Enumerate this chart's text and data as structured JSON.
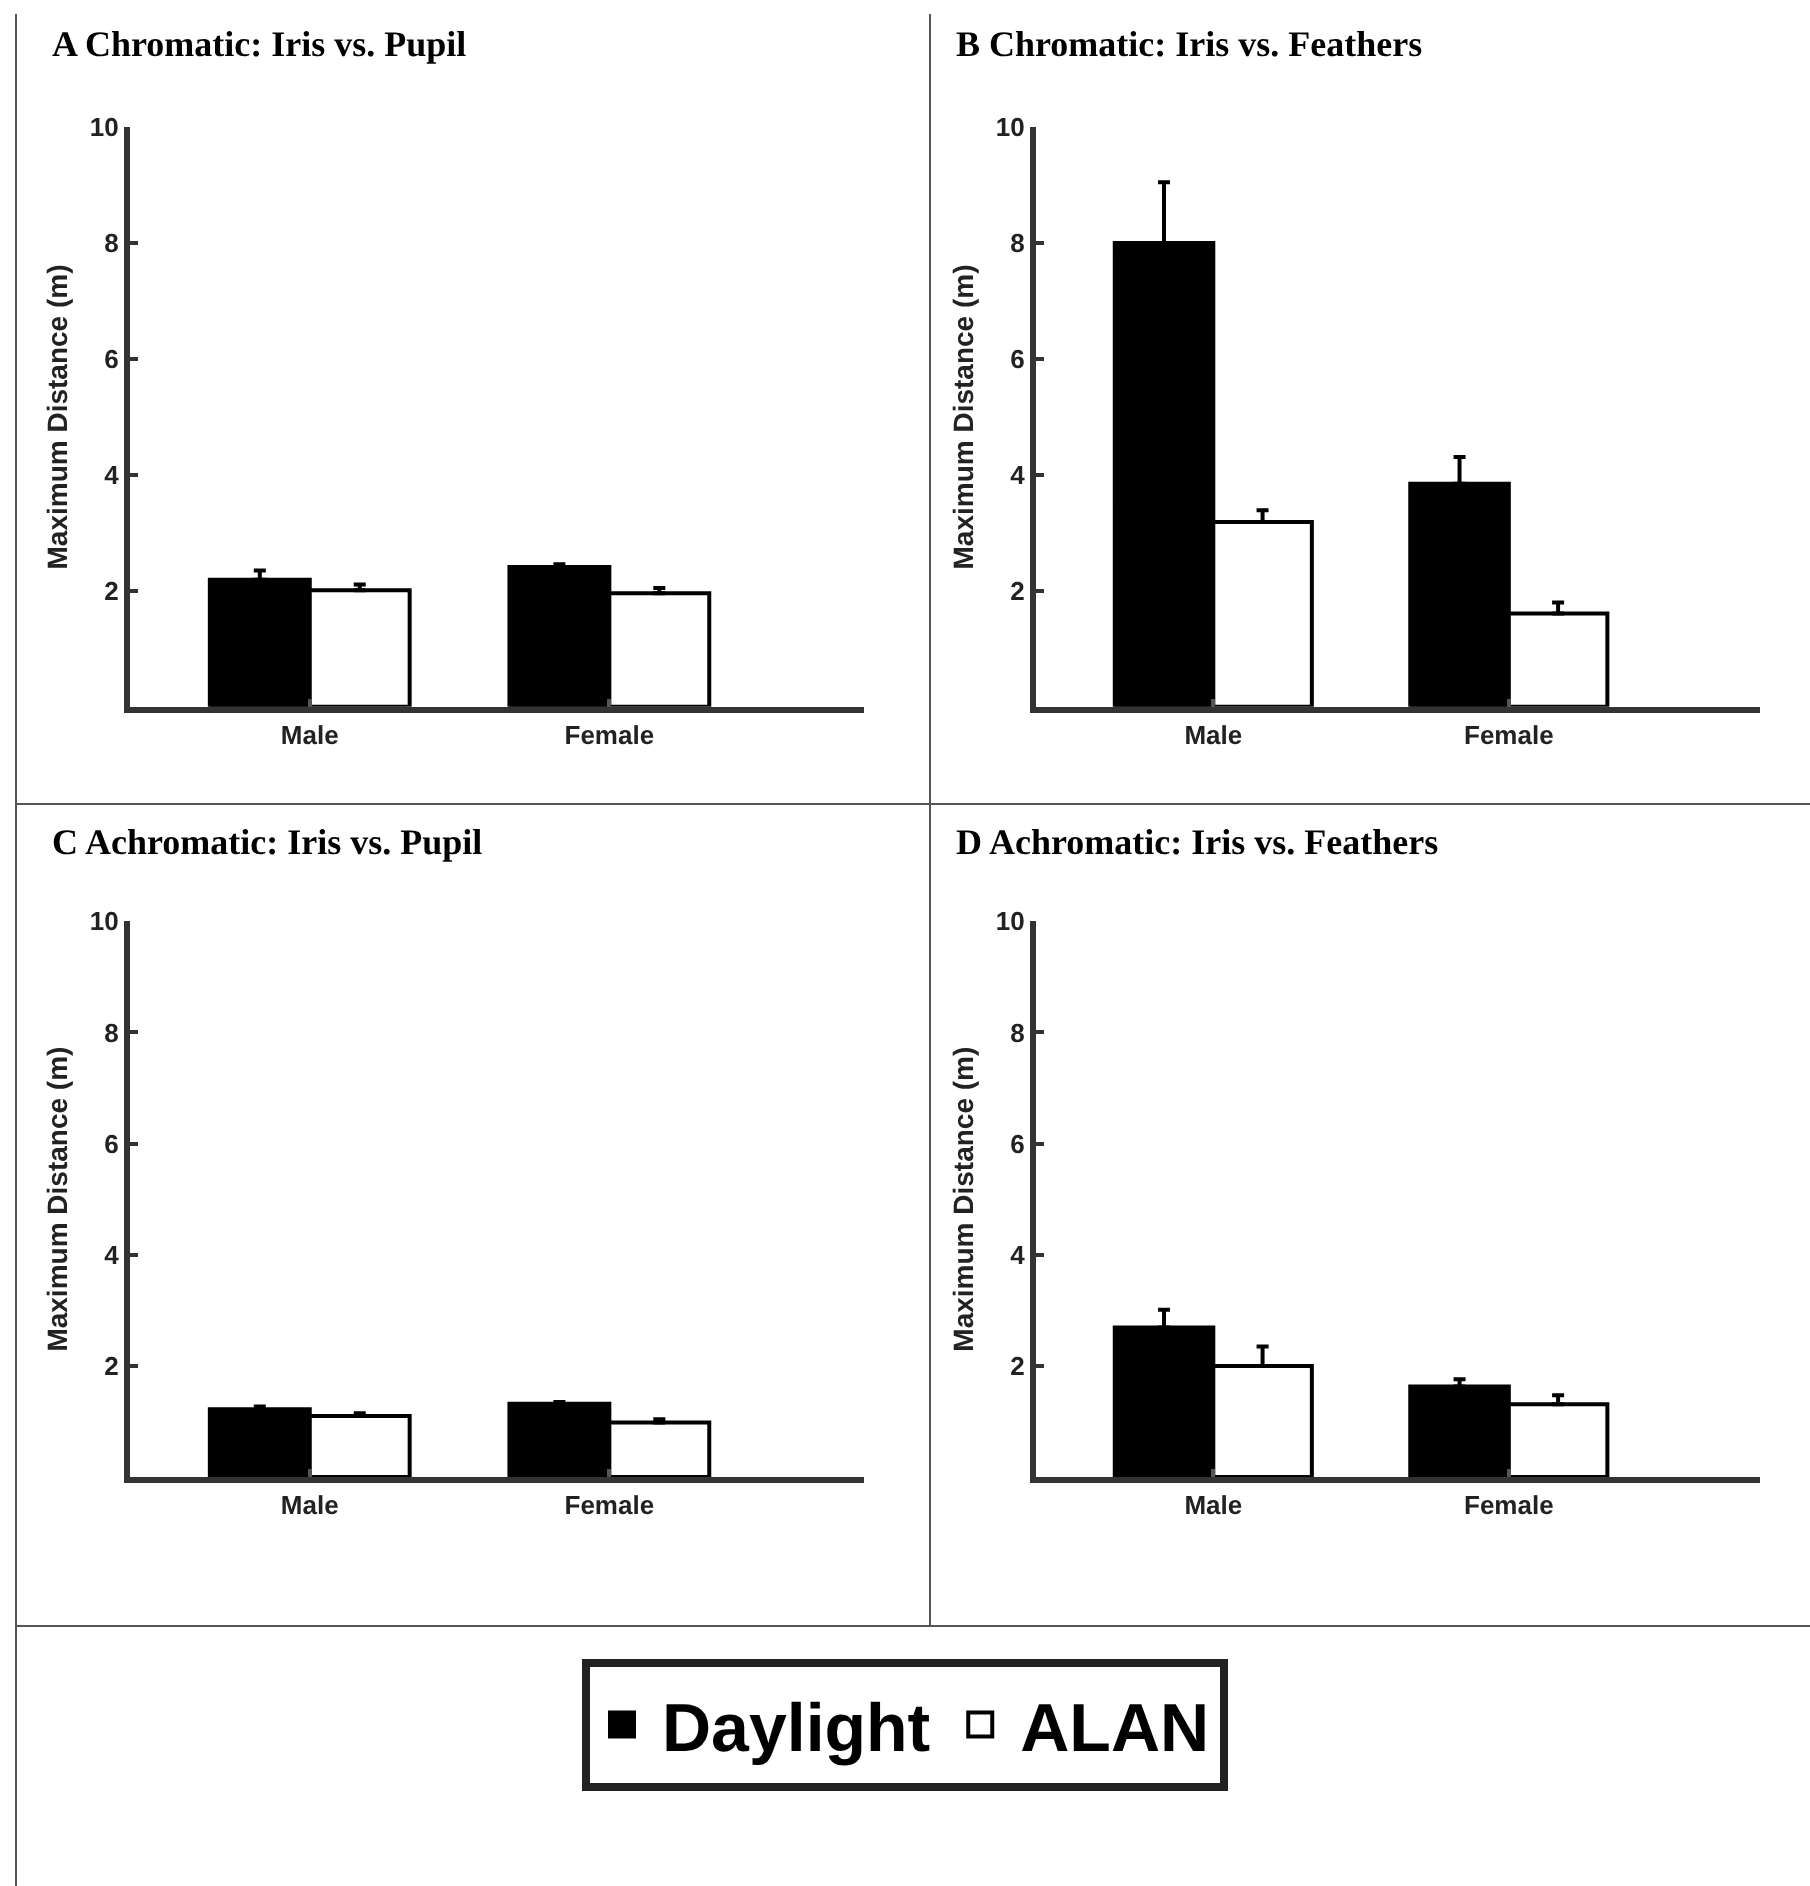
{
  "chart_data": [
    {
      "type": "bar",
      "title": "A Chromatic: Iris vs. Pupil",
      "ylabel": "Maximum Distance (m)",
      "categories": [
        "Male",
        "Female"
      ],
      "ylim": [
        0,
        10
      ],
      "yticks": [
        2,
        4,
        6,
        8,
        10
      ],
      "legend": "bottom",
      "series": [
        {
          "name": "Daylight",
          "color": "#000000",
          "values": [
            2.19,
            2.41
          ],
          "errors": [
            [
              2.19,
              2.35
            ],
            [
              2.41,
              2.46
            ]
          ]
        },
        {
          "name": "ALAN",
          "color": "#ffffff",
          "values": [
            2.01,
            1.96
          ],
          "errors": [
            [
              2.01,
              2.11
            ],
            [
              1.96,
              2.05
            ]
          ]
        }
      ]
    },
    {
      "type": "bar",
      "title": "B Chromatic: Iris vs. Feathers",
      "ylabel": "Maximum Distance (m)",
      "categories": [
        "Male",
        "Female"
      ],
      "ylim": [
        0,
        10
      ],
      "yticks": [
        2,
        4,
        6,
        8,
        10
      ],
      "series": [
        {
          "color": "#000000",
          "values": [
            8.0,
            3.85
          ],
          "errors": [
            [
              8.0,
              9.05
            ],
            [
              3.85,
              4.31
            ]
          ]
        },
        {
          "color": "#ffffff",
          "values": [
            3.19,
            1.61
          ],
          "errors": [
            [
              3.19,
              3.39
            ],
            [
              1.61,
              1.8
            ]
          ]
        }
      ]
    },
    {
      "type": "bar",
      "title": "C Achromatic: Iris vs. Pupil",
      "ylabel": "Maximum Distance (m)",
      "categories": [
        "Male",
        "Female"
      ],
      "ylim": [
        0,
        10
      ],
      "yticks": [
        2,
        4,
        6,
        8,
        10
      ],
      "series": [
        {
          "color": "#000000",
          "values": [
            1.22,
            1.32
          ],
          "errors": [
            [
              1.22,
              1.27
            ],
            [
              1.32,
              1.35
            ]
          ]
        },
        {
          "color": "#ffffff",
          "values": [
            1.1,
            0.98
          ],
          "errors": [
            [
              1.1,
              1.15
            ],
            [
              0.98,
              1.04
            ]
          ]
        }
      ]
    },
    {
      "type": "bar",
      "title": "D Achromatic: Iris vs. Feathers",
      "ylabel": "Maximum Distance (m)",
      "categories": [
        "Male",
        "Female"
      ],
      "ylim": [
        0,
        10
      ],
      "yticks": [
        2,
        4,
        6,
        8,
        10
      ],
      "series": [
        {
          "color": "#000000",
          "values": [
            2.69,
            1.63
          ],
          "errors": [
            [
              2.69,
              3.01
            ],
            [
              1.63,
              1.76
            ]
          ]
        },
        {
          "color": "#ffffff",
          "values": [
            2.0,
            1.31
          ],
          "errors": [
            [
              2.0,
              2.35
            ],
            [
              1.31,
              1.47
            ]
          ]
        }
      ]
    }
  ]
}
